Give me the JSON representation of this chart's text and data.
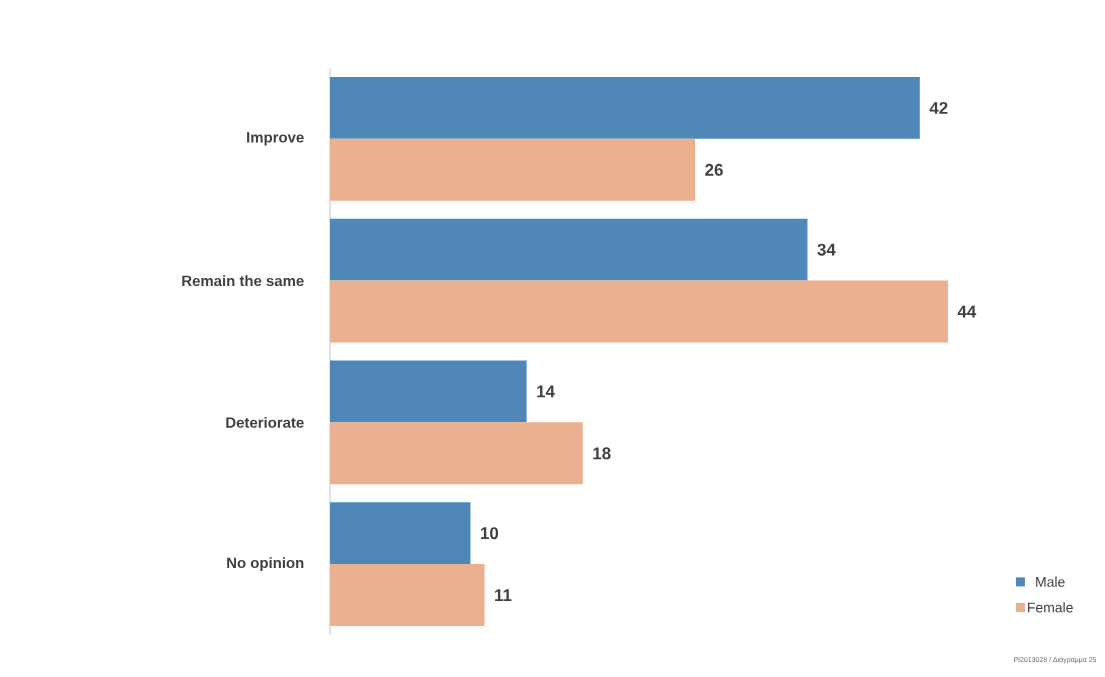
{
  "chart_data": {
    "type": "bar",
    "orientation": "horizontal",
    "categories": [
      "Improve",
      "Remain the same",
      "Deteriorate",
      "No opinion"
    ],
    "series": [
      {
        "name": "Male",
        "color": "#4f87b8",
        "values": [
          42,
          34,
          14,
          10
        ]
      },
      {
        "name": "Female",
        "color": "#ebb08f",
        "values": [
          26,
          44,
          18,
          11
        ]
      }
    ],
    "tick_labels": "y",
    "data_labels": true,
    "legend": "bottom right",
    "grid": false,
    "annotations": [
      "PI2013028 / Διάγραμμα 25"
    ]
  }
}
